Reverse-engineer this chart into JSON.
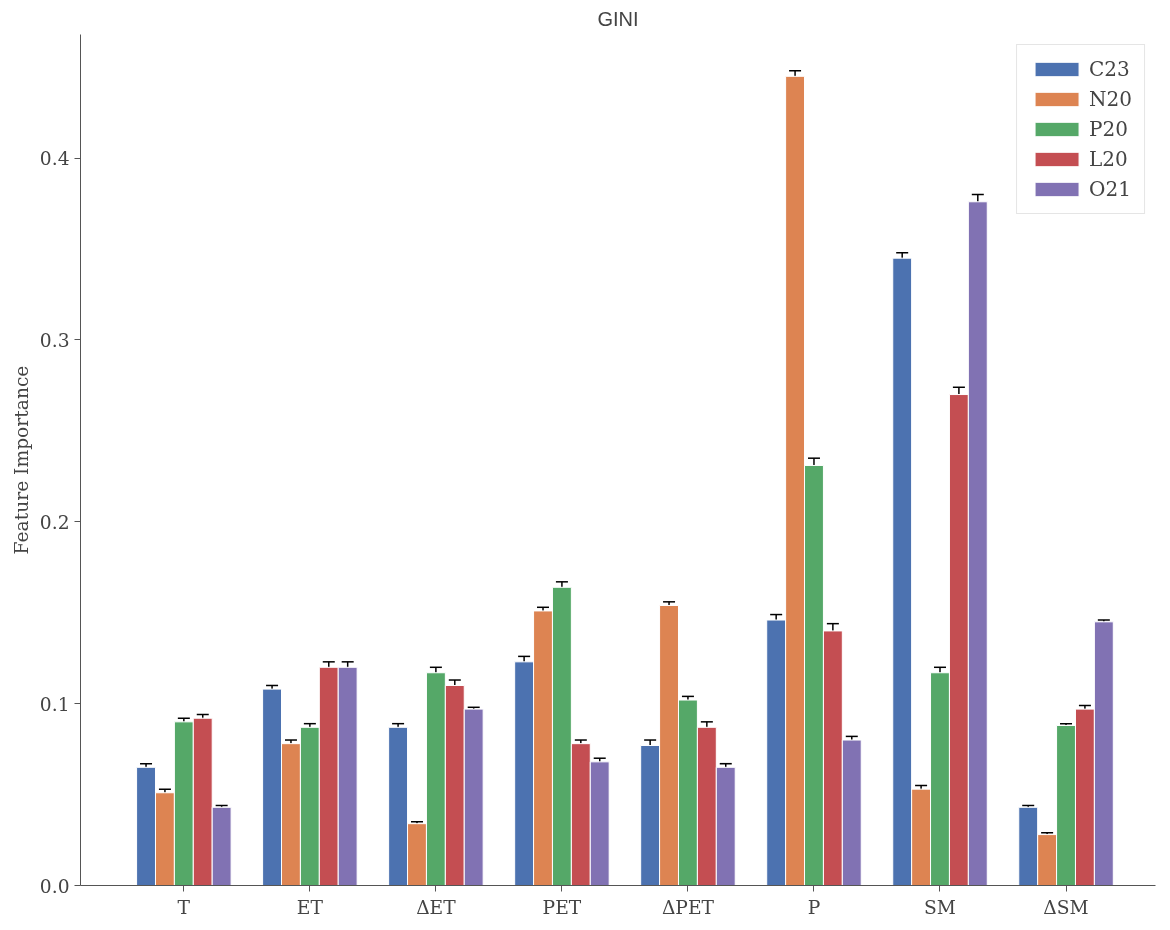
{
  "chart_data": {
    "type": "bar",
    "title": "GINI",
    "ylabel": "Feature Importance",
    "categories": [
      "T",
      "ET",
      "ΔET",
      "PET",
      "ΔPET",
      "P",
      "SM",
      "ΔSM"
    ],
    "series": [
      {
        "name": "C23",
        "color": "#4c72b0",
        "values": [
          0.065,
          0.108,
          0.087,
          0.123,
          0.077,
          0.146,
          0.345,
          0.043
        ],
        "errors": [
          0.002,
          0.002,
          0.002,
          0.003,
          0.003,
          0.003,
          0.003,
          0.001
        ]
      },
      {
        "name": "N20",
        "color": "#dd8452",
        "values": [
          0.051,
          0.078,
          0.034,
          0.151,
          0.154,
          0.445,
          0.053,
          0.028
        ],
        "errors": [
          0.002,
          0.002,
          0.001,
          0.002,
          0.002,
          0.003,
          0.002,
          0.001
        ]
      },
      {
        "name": "P20",
        "color": "#55a868",
        "values": [
          0.09,
          0.087,
          0.117,
          0.164,
          0.102,
          0.231,
          0.117,
          0.088
        ],
        "errors": [
          0.002,
          0.002,
          0.003,
          0.003,
          0.002,
          0.004,
          0.003,
          0.001
        ]
      },
      {
        "name": "L20",
        "color": "#c44e52",
        "values": [
          0.092,
          0.12,
          0.11,
          0.078,
          0.087,
          0.14,
          0.27,
          0.097
        ],
        "errors": [
          0.002,
          0.003,
          0.003,
          0.002,
          0.003,
          0.004,
          0.004,
          0.002
        ]
      },
      {
        "name": "O21",
        "color": "#8172b3",
        "values": [
          0.043,
          0.12,
          0.097,
          0.068,
          0.065,
          0.08,
          0.376,
          0.145
        ],
        "errors": [
          0.001,
          0.003,
          0.001,
          0.002,
          0.002,
          0.002,
          0.004,
          0.001
        ]
      }
    ],
    "ylim": [
      0,
      0.468
    ],
    "yticks": [
      {
        "value": 0,
        "label": "0.0"
      },
      0.1,
      0.2,
      0.3,
      0.4
    ],
    "grid": false,
    "legend": "top right"
  }
}
